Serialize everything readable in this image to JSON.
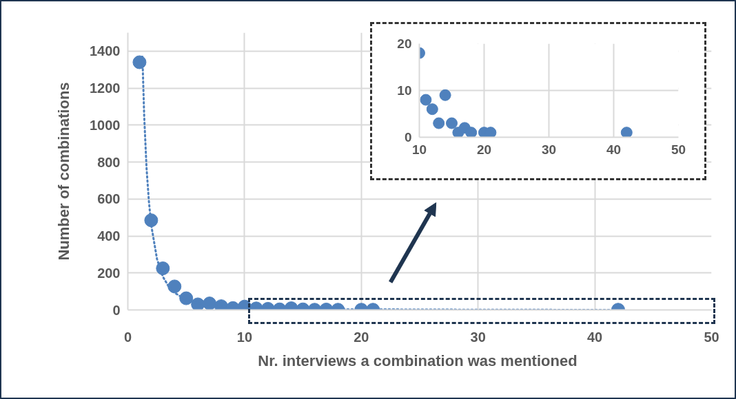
{
  "chart_data": [
    {
      "type": "scatter",
      "xlabel": "Nr. interviews a combination  was mentioned",
      "ylabel": "Number of combinations",
      "xlim": [
        0,
        50
      ],
      "ylim": [
        0,
        1500
      ],
      "xticks": [
        0,
        10,
        20,
        30,
        40,
        50
      ],
      "yticks": [
        0,
        200,
        400,
        600,
        800,
        1000,
        1200,
        1400
      ],
      "grid": true,
      "marker": "circle",
      "series": [
        {
          "color": "#4f81bd",
          "x": [
            1,
            2,
            3,
            4,
            5,
            6,
            7,
            8,
            9,
            10,
            11,
            12,
            13,
            14,
            15,
            16,
            17,
            18,
            20,
            21,
            42
          ],
          "values": [
            1340,
            485,
            225,
            127,
            63,
            30,
            35,
            20,
            10,
            18,
            8,
            6,
            3,
            9,
            3,
            1,
            2,
            1,
            1,
            1,
            1
          ]
        },
        {
          "type": "line",
          "line_style": "dotted",
          "marker": "none",
          "color": "#4f81bd",
          "x": [
            1.25,
            1.4,
            1.6,
            1.8,
            2,
            2.5,
            3,
            3.5,
            4,
            5,
            6,
            8,
            10,
            15,
            20,
            30,
            42
          ],
          "values": [
            1370,
            1050,
            770,
            590,
            460,
            275,
            180,
            126,
            93,
            55,
            36,
            19,
            11,
            4,
            3,
            1,
            0
          ]
        }
      ]
    },
    {
      "type": "scatter",
      "xlim": [
        10,
        50
      ],
      "ylim": [
        0,
        20
      ],
      "xticks": [
        10,
        20,
        30,
        40,
        50
      ],
      "yticks": [
        0,
        10,
        20
      ],
      "grid": true,
      "marker": "circle",
      "series": [
        {
          "color": "#4f81bd",
          "x": [
            10,
            11,
            12,
            13,
            14,
            15,
            16,
            17,
            18,
            20,
            21,
            42
          ],
          "values": [
            18,
            8,
            6,
            3,
            9,
            3,
            1,
            2,
            1,
            1,
            1,
            1
          ]
        }
      ]
    }
  ]
}
